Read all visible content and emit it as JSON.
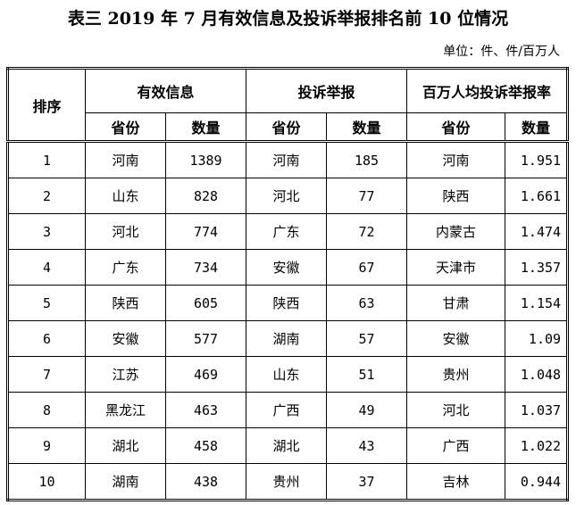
{
  "title": "表三  2019 年 7 月有效信息及投诉举报排名前 10 位情况",
  "unit": "单位：件、件/百万人",
  "headers": {
    "rank": "排序",
    "group1": "有效信息",
    "group2": "投诉举报",
    "group3": "百万人均投诉举报率",
    "province": "省份",
    "count": "数量"
  },
  "rows": [
    [
      "1",
      "河南",
      "1389",
      "河南",
      "185",
      "河南",
      "1.951"
    ],
    [
      "2",
      "山东",
      "828",
      "河北",
      "77",
      "陕西",
      "1.661"
    ],
    [
      "3",
      "河北",
      "774",
      "广东",
      "72",
      "内蒙古",
      "1.474"
    ],
    [
      "4",
      "广东",
      "734",
      "安徽",
      "67",
      "天津市",
      "1.357"
    ],
    [
      "5",
      "陕西",
      "605",
      "陕西",
      "63",
      "甘肃",
      "1.154"
    ],
    [
      "6",
      "安徽",
      "577",
      "湖南",
      "57",
      "安徽",
      "1.09"
    ],
    [
      "7",
      "江苏",
      "469",
      "山东",
      "51",
      "贵州",
      "1.048"
    ],
    [
      "8",
      "黑龙江",
      "463",
      "广西",
      "49",
      "河北",
      "1.037"
    ],
    [
      "9",
      "湖北",
      "458",
      "湖北",
      "43",
      "广西",
      "1.022"
    ],
    [
      "10",
      "湖南",
      "438",
      "贵州",
      "37",
      "吉林",
      "0.944"
    ]
  ]
}
